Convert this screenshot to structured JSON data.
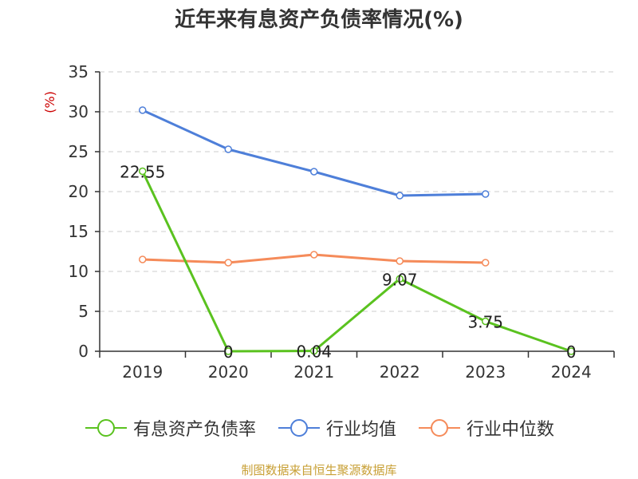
{
  "chart_data": {
    "type": "line",
    "title": "近年来有息资产负债率情况(%)",
    "ylabel": "(%)",
    "xlabel": "",
    "categories": [
      "2019",
      "2020",
      "2021",
      "2022",
      "2023",
      "2024"
    ],
    "ylim": [
      0,
      35
    ],
    "yticks": [
      0,
      5,
      10,
      15,
      20,
      25,
      30,
      35
    ],
    "grid": "horizontal dashed",
    "legend_position": "bottom",
    "series": [
      {
        "name": "有息资产负债率",
        "color": "#5ac21f",
        "values": [
          22.55,
          0,
          0.04,
          9.07,
          3.75,
          0
        ],
        "labels": [
          "22.55",
          "0",
          "0.04",
          "9.07",
          "3.75",
          "0"
        ]
      },
      {
        "name": "行业均值",
        "color": "#4e7fd9",
        "values": [
          30.2,
          25.3,
          22.5,
          19.5,
          19.7,
          null
        ]
      },
      {
        "name": "行业中位数",
        "color": "#f58b5a",
        "values": [
          11.5,
          11.1,
          12.1,
          11.3,
          11.1,
          null
        ]
      }
    ]
  },
  "source": "制图数据来自恒生聚源数据库"
}
